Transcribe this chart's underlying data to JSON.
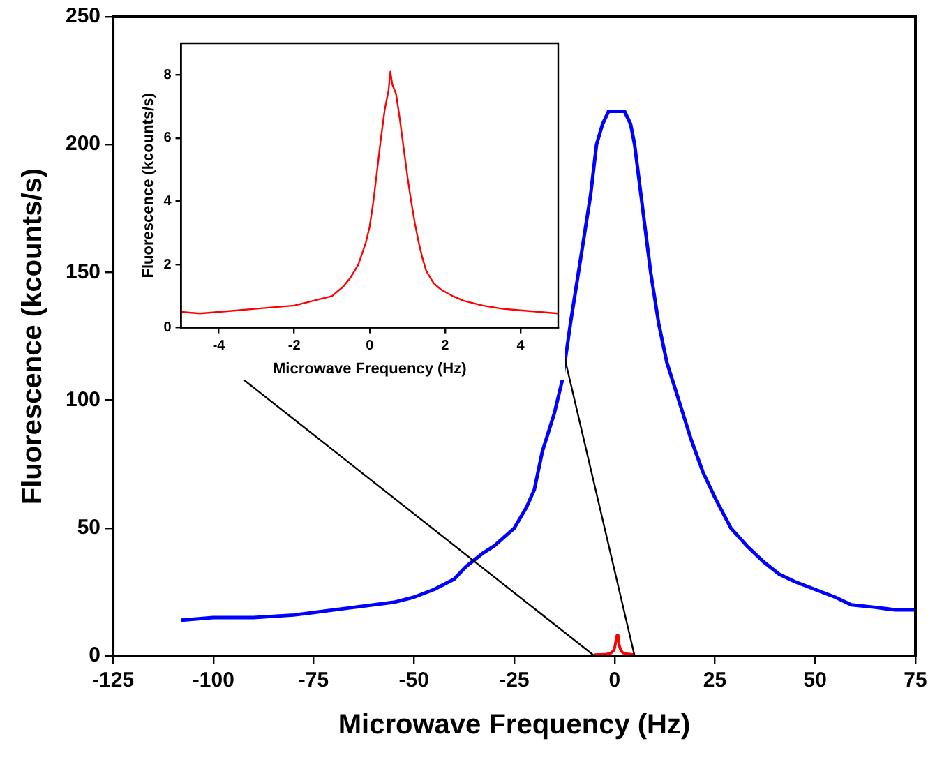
{
  "chart_data": [
    {
      "type": "line",
      "xlabel": "Microwave Frequency (Hz)",
      "ylabel": "Fluorescence (kcounts/s)",
      "xlim": [
        -125,
        75
      ],
      "xticks": [
        -125,
        -100,
        -75,
        -50,
        -25,
        0,
        25,
        50,
        75
      ],
      "ylim": [
        0,
        250
      ],
      "yticks": [
        0,
        50,
        100,
        150,
        200,
        250
      ],
      "grid": false,
      "legend": false,
      "marker": "none",
      "line_style": "solid",
      "series": [
        {
          "color": "#0000ff",
          "x": [
            -108,
            -100,
            -90,
            -80,
            -75,
            -65,
            -55,
            -50,
            -45,
            -40,
            -37,
            -33,
            -30,
            -25,
            -22,
            -20,
            -18,
            -15,
            -13,
            -11,
            -8,
            -6,
            -4.5,
            -3,
            -1.5,
            2.5,
            4,
            5,
            7,
            9,
            11,
            13,
            16,
            19,
            22,
            25,
            29,
            33,
            37,
            41,
            45,
            50,
            55,
            59,
            65,
            70,
            75
          ],
          "values": [
            14,
            15,
            15,
            16,
            17,
            19,
            21,
            23,
            26,
            30,
            35,
            40,
            43,
            50,
            58,
            65,
            80,
            95,
            108,
            130,
            160,
            180,
            200,
            208,
            213,
            213,
            208,
            200,
            175,
            150,
            130,
            115,
            100,
            85,
            72,
            62,
            50,
            43,
            37,
            32,
            29,
            26,
            23,
            20,
            19,
            18,
            18
          ]
        },
        {
          "color": "#ff0000",
          "x": [
            -5,
            -3,
            -2,
            -1,
            -0.3,
            0,
            0.3,
            0.6,
            0.9,
            1.2,
            1.5,
            2,
            3,
            5
          ],
          "values": [
            0.5,
            0.6,
            0.7,
            1.0,
            2,
            3,
            5.5,
            8,
            6.5,
            4,
            2.5,
            1.3,
            0.8,
            0.5
          ]
        }
      ]
    },
    {
      "type": "line",
      "xlabel": "Microwave Frequency (Hz)",
      "ylabel": "Fluorescence (kcounts/s)",
      "xlim": [
        -5,
        5
      ],
      "xticks": [
        -4,
        -2,
        0,
        2,
        4
      ],
      "ylim": [
        0,
        9
      ],
      "yticks": [
        0,
        2,
        4,
        6,
        8
      ],
      "grid": false,
      "legend": false,
      "marker": "none",
      "line_style": "solid",
      "series": [
        {
          "color": "#ff0000",
          "x": [
            -5,
            -4.5,
            -4,
            -3.5,
            -3,
            -2.5,
            -2,
            -1.5,
            -1,
            -0.7,
            -0.5,
            -0.3,
            -0.1,
            0,
            0.1,
            0.2,
            0.3,
            0.4,
            0.5,
            0.55,
            0.6,
            0.7,
            0.8,
            0.9,
            1,
            1.1,
            1.2,
            1.3,
            1.4,
            1.5,
            1.7,
            1.9,
            2.2,
            2.5,
            3,
            3.5,
            4,
            4.5,
            5
          ],
          "values": [
            0.5,
            0.45,
            0.5,
            0.55,
            0.6,
            0.65,
            0.7,
            0.85,
            1.0,
            1.3,
            1.6,
            2.0,
            2.7,
            3.2,
            4.0,
            5.0,
            6.0,
            6.9,
            7.5,
            8.1,
            7.7,
            7.4,
            6.6,
            5.7,
            4.8,
            4.0,
            3.3,
            2.7,
            2.2,
            1.8,
            1.4,
            1.2,
            1.0,
            0.85,
            0.7,
            0.6,
            0.55,
            0.5,
            0.45
          ]
        }
      ]
    }
  ]
}
